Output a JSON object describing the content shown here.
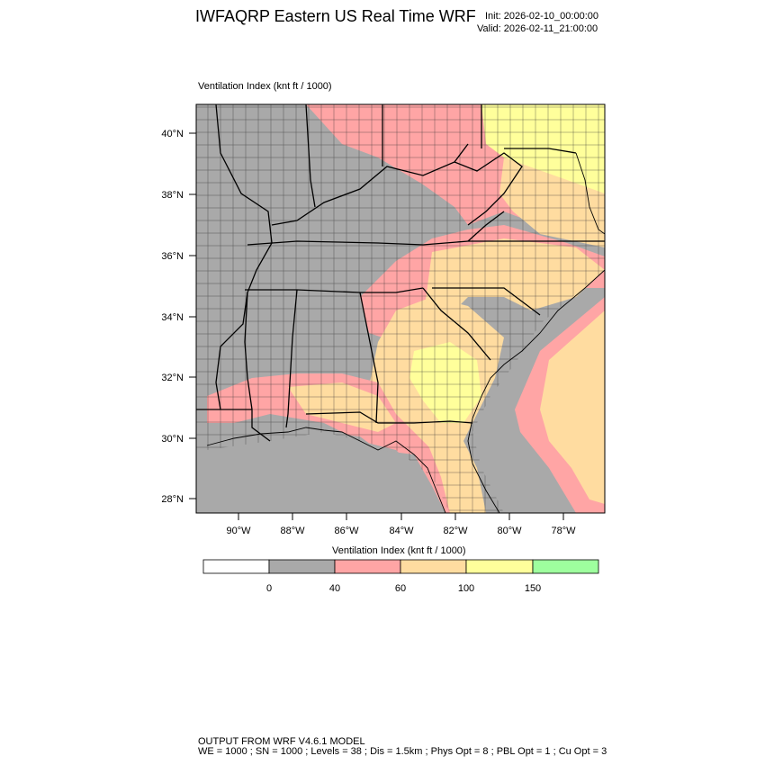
{
  "header": {
    "title": "IWFAQRP Eastern US Real Time WRF",
    "init": "Init: 2026-02-10_00:00:00",
    "valid": "Valid: 2026-02-11_21:00:00"
  },
  "map": {
    "field_title": "Ventilation Index   (knt ft / 1000)",
    "lat_labels": [
      "40°N",
      "38°N",
      "36°N",
      "34°N",
      "32°N",
      "30°N",
      "28°N"
    ],
    "lon_labels": [
      "90°W",
      "88°W",
      "86°W",
      "84°W",
      "82°W",
      "80°W",
      "78°W"
    ]
  },
  "colorbar": {
    "title": "Ventilation Index  (knt ft / 1000)",
    "labels": [
      "0",
      "40",
      "60",
      "100",
      "150"
    ],
    "colors": [
      "#ffffff",
      "#a9a9a9",
      "#ffa5a5",
      "#ffdca0",
      "#ffff9b",
      "#9eff9e"
    ]
  },
  "footer": {
    "line1": "OUTPUT FROM WRF V4.6.1 MODEL",
    "line2": "WE = 1000 ; SN = 1000 ; Levels = 38 ; Dis = 1.5km ; Phys Opt = 8 ; PBL Opt = 1 ; Cu Opt = 3"
  }
}
